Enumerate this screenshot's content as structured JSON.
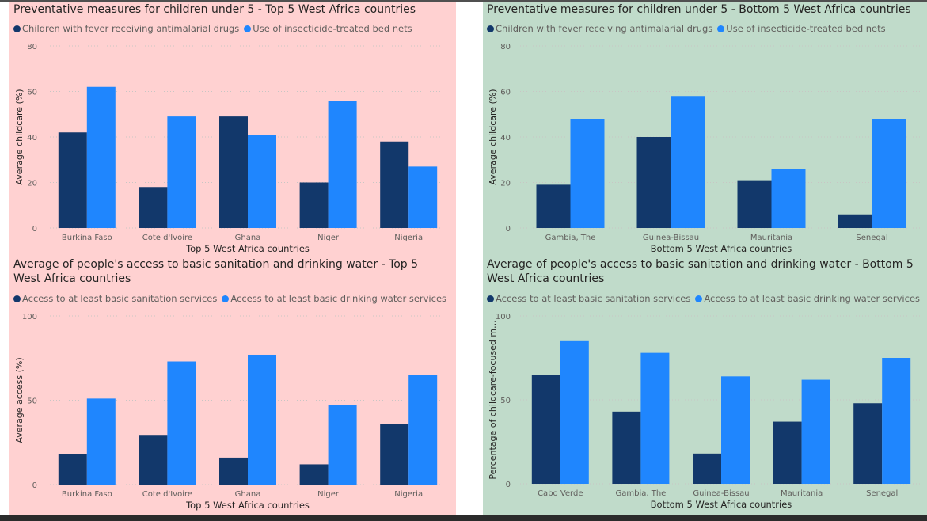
{
  "colors": {
    "series1": "#12386b",
    "series2": "#1f86fe",
    "panel_top": "#ffd1d1",
    "panel_bottom": "#c0dbca",
    "text": "#252423",
    "muted": "#605e5c",
    "grid": "#c8c6c4"
  },
  "chart_data": [
    {
      "type": "bar",
      "title": "Preventative measures for children under 5 - Top 5 West Africa countries",
      "xlabel": "Top 5 West Africa countries",
      "ylabel": "Average childcare (%)",
      "ylim": [
        0,
        80
      ],
      "yticks": [
        "0",
        "20",
        "40",
        "60",
        "80"
      ],
      "categories": [
        "Burkina Faso",
        "Cote d'Ivoire",
        "Ghana",
        "Niger",
        "Nigeria"
      ],
      "series": [
        {
          "name": "Children with fever receiving antimalarial drugs",
          "values": [
            42,
            18,
            49,
            20,
            38
          ]
        },
        {
          "name": "Use of insecticide-treated bed nets",
          "values": [
            62,
            49,
            41,
            56,
            27
          ]
        }
      ],
      "grid": true,
      "legend": "top-left"
    },
    {
      "type": "bar",
      "title": "Preventative measures for children under 5 - Bottom 5 West Africa countries",
      "xlabel": "Bottom 5 West Africa countries",
      "ylabel": "Average childcare (%)",
      "ylim": [
        0,
        80
      ],
      "yticks": [
        "0",
        "20",
        "40",
        "60",
        "80"
      ],
      "categories": [
        "Gambia, The",
        "Guinea-Bissau",
        "Mauritania",
        "Senegal"
      ],
      "series": [
        {
          "name": "Children with fever receiving antimalarial drugs",
          "values": [
            19,
            40,
            21,
            6
          ]
        },
        {
          "name": "Use of insecticide-treated bed nets",
          "values": [
            48,
            58,
            26,
            48
          ]
        }
      ],
      "grid": true,
      "legend": "top-left"
    },
    {
      "type": "bar",
      "title": "Average of people's access to basic sanitation and drinking water - Top 5 West Africa countries",
      "xlabel": "Top 5 West Africa countries",
      "ylabel": "Average access (%)",
      "ylim": [
        0,
        100
      ],
      "yticks": [
        "0",
        "50",
        "100"
      ],
      "categories": [
        "Burkina Faso",
        "Cote d'Ivoire",
        "Ghana",
        "Niger",
        "Nigeria"
      ],
      "series": [
        {
          "name": "Access to at least basic sanitation services",
          "values": [
            18,
            29,
            16,
            12,
            36
          ]
        },
        {
          "name": "Access to at least basic drinking water services",
          "values": [
            51,
            73,
            77,
            47,
            65
          ]
        }
      ],
      "grid": true,
      "legend": "top-left"
    },
    {
      "type": "bar",
      "title": "Average of people's access to basic sanitation and drinking water - Bottom 5 West Africa countries",
      "xlabel": "Bottom 5 West Africa countries",
      "ylabel": "Percentage of childcare-focused m...",
      "ylim": [
        0,
        100
      ],
      "yticks": [
        "0",
        "50",
        "100"
      ],
      "categories": [
        "Cabo Verde",
        "Gambia, The",
        "Guinea-Bissau",
        "Mauritania",
        "Senegal"
      ],
      "series": [
        {
          "name": "Access to at least basic sanitation services",
          "values": [
            65,
            43,
            18,
            37,
            48
          ]
        },
        {
          "name": "Access to at least basic drinking water services",
          "values": [
            85,
            78,
            64,
            62,
            75
          ]
        }
      ],
      "grid": true,
      "legend": "top-left"
    }
  ]
}
